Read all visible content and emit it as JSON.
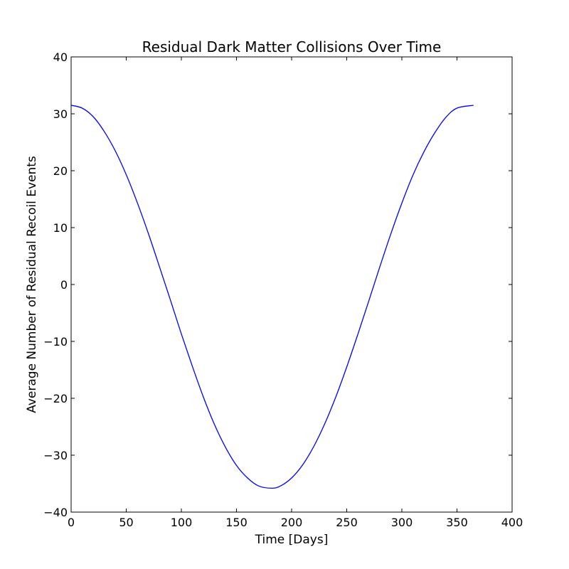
{
  "chart_data": {
    "type": "line",
    "title": "Residual Dark Matter Collisions Over Time",
    "xlabel": "Time [Days]",
    "ylabel": "Average Number of Residual Recoil Events",
    "xlim": [
      0,
      400
    ],
    "ylim": [
      -40,
      40
    ],
    "x_ticks": [
      0,
      50,
      100,
      150,
      200,
      250,
      300,
      350,
      400
    ],
    "x_tick_labels": [
      "0",
      "50",
      "100",
      "150",
      "200",
      "250",
      "300",
      "350",
      "400"
    ],
    "y_ticks": [
      40,
      30,
      20,
      10,
      0,
      -10,
      -20,
      -30,
      -40
    ],
    "y_tick_labels": [
      "40",
      "30",
      "20",
      "10",
      "0",
      "−10",
      "−20",
      "−30",
      "−40"
    ],
    "grid": false,
    "series": [
      {
        "color": "#0000ff",
        "x": [
          0,
          10,
          20,
          30,
          40,
          50,
          60,
          70,
          80,
          90,
          100,
          110,
          120,
          130,
          140,
          150,
          160,
          170,
          182,
          190,
          200,
          210,
          220,
          230,
          240,
          250,
          260,
          270,
          280,
          290,
          300,
          310,
          320,
          330,
          340,
          350,
          365
        ],
        "y": [
          31.5,
          31.0,
          29.5,
          26.9,
          23.5,
          19.3,
          14.4,
          9.0,
          3.2,
          -2.7,
          -8.7,
          -14.4,
          -19.8,
          -24.6,
          -28.6,
          -31.8,
          -34.0,
          -35.4,
          -35.8,
          -35.4,
          -34.0,
          -31.7,
          -28.5,
          -24.5,
          -19.8,
          -14.5,
          -8.8,
          -2.9,
          3.1,
          8.9,
          14.3,
          19.2,
          23.3,
          26.7,
          29.4,
          31.0,
          31.5
        ]
      }
    ]
  }
}
